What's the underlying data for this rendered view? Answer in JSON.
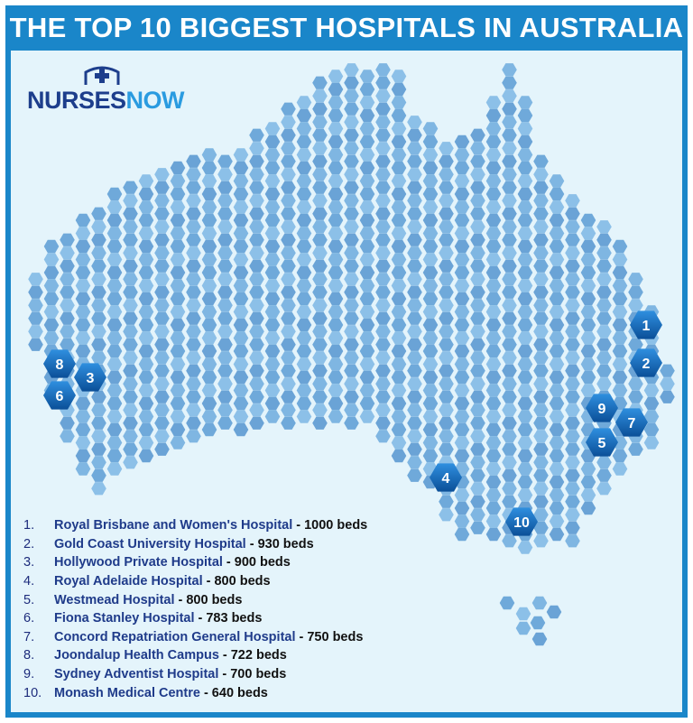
{
  "title": "THE TOP 10 BIGGEST HOSPITALS IN AUSTRALIA",
  "logo": {
    "part1": "NURSES",
    "part2": "NOW",
    "icon": "nurse-cap-cross-icon",
    "colors": {
      "part1": "#1d3e8c",
      "part2": "#2a9be0"
    }
  },
  "colors": {
    "frame": "#1a86c9",
    "panel": "#e4f4fb",
    "hex": "#6fa9da",
    "marker_dark": "#0b5aa6",
    "marker_light": "#2f8fdf"
  },
  "hospitals": [
    {
      "rank": "1.",
      "name": "Royal Brisbane and Women's Hospital",
      "beds": "- 1000 beds"
    },
    {
      "rank": "2.",
      "name": "Gold Coast University Hospital",
      "beds": "- 930 beds"
    },
    {
      "rank": "3.",
      "name": "Hollywood Private Hospital",
      "beds": "- 900 beds"
    },
    {
      "rank": "4.",
      "name": "Royal Adelaide Hospital",
      "beds": "- 800 beds"
    },
    {
      "rank": "5.",
      "name": "Westmead Hospital",
      "beds": "- 800 beds"
    },
    {
      "rank": "6.",
      "name": "Fiona Stanley Hospital",
      "beds": " - 783 beds"
    },
    {
      "rank": "7.",
      "name": "Concord Repatriation General Hospital",
      "beds": "- 750 beds"
    },
    {
      "rank": "8.",
      "name": "Joondalup Health Campus",
      "beds": "- 722 beds"
    },
    {
      "rank": "9.",
      "name": "Sydney Adventist Hospital",
      "beds": "- 700 beds"
    },
    {
      "rank": "10.",
      "name": "Monash Medical Centre",
      "beds": "- 640 beds"
    }
  ],
  "markers": [
    "1",
    "2",
    "3",
    "4",
    "5",
    "6",
    "7",
    "8",
    "9",
    "10"
  ]
}
